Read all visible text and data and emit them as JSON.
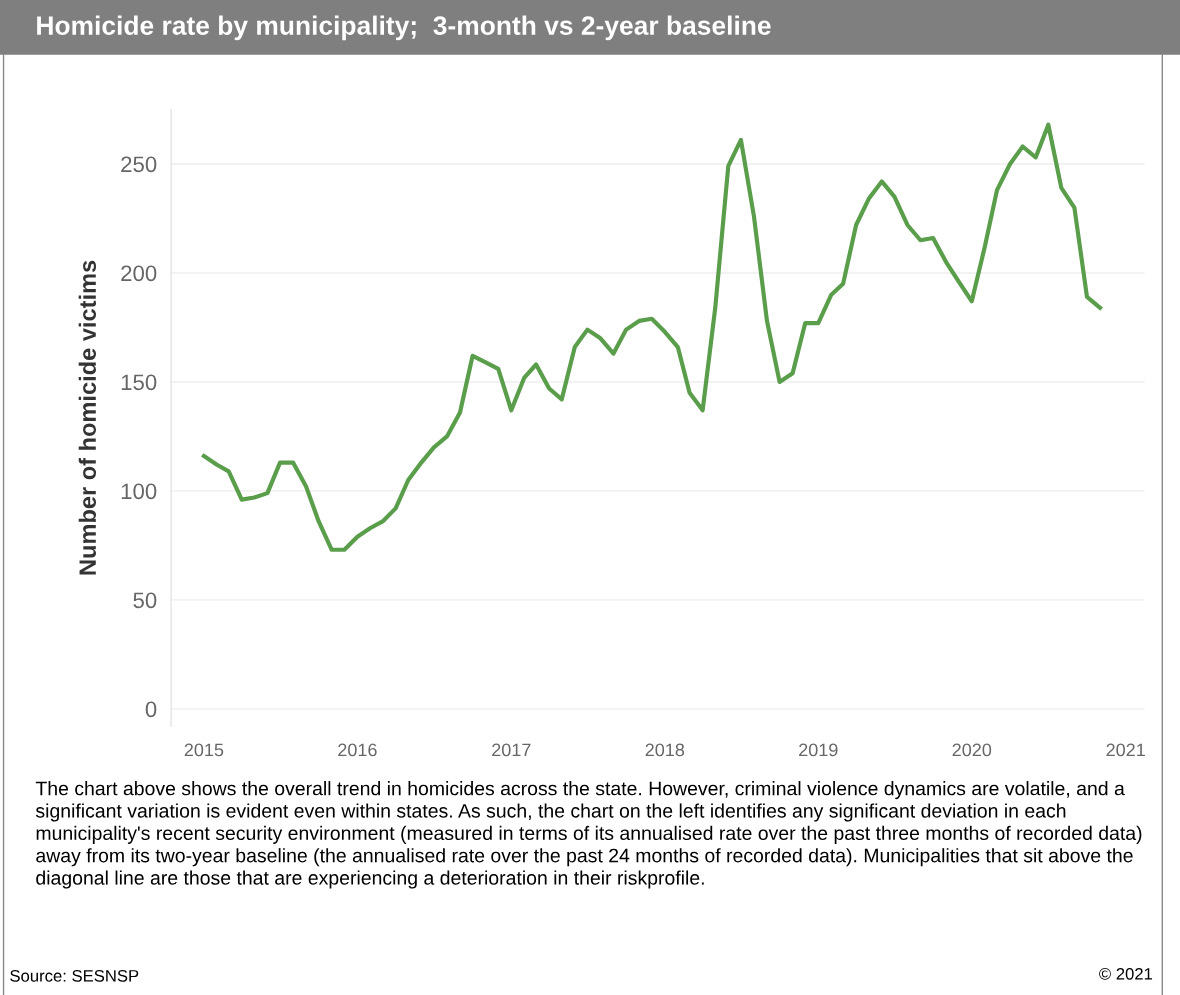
{
  "chart_data": {
    "type": "line",
    "title": "Homicide rate by municipality;  3-month vs 2-year baseline",
    "ylabel": "Number of homicide victims",
    "x": [
      "2015-01",
      "2015-02",
      "2015-03",
      "2015-04",
      "2015-05",
      "2015-06",
      "2015-07",
      "2015-08",
      "2015-09",
      "2015-10",
      "2015-11",
      "2015-12",
      "2016-01",
      "2016-02",
      "2016-03",
      "2016-04",
      "2016-05",
      "2016-06",
      "2016-07",
      "2016-08",
      "2016-09",
      "2016-10",
      "2016-11",
      "2016-12",
      "2017-01",
      "2017-02",
      "2017-03",
      "2017-04",
      "2017-05",
      "2017-06",
      "2017-07",
      "2017-08",
      "2017-09",
      "2017-10",
      "2017-11",
      "2017-12",
      "2018-01",
      "2018-02",
      "2018-03",
      "2018-04",
      "2018-05",
      "2018-06",
      "2018-07",
      "2018-08",
      "2018-09",
      "2018-10",
      "2018-11",
      "2018-12",
      "2019-01",
      "2019-02",
      "2019-03",
      "2019-04",
      "2019-05",
      "2019-06",
      "2019-07",
      "2019-08",
      "2019-09",
      "2019-10",
      "2019-11",
      "2019-12",
      "2020-01",
      "2020-02",
      "2020-03",
      "2020-04",
      "2020-05",
      "2020-06",
      "2020-07",
      "2020-08",
      "2020-09",
      "2020-10",
      "2020-11"
    ],
    "series": [
      {
        "color": "#5a9e4b",
        "values": [
          116,
          112,
          109,
          96,
          97,
          99,
          113,
          113,
          102,
          86,
          73,
          73,
          79,
          83,
          86,
          92,
          105,
          113,
          120,
          125,
          136,
          162,
          159,
          156,
          137,
          152,
          158,
          147,
          142,
          166,
          174,
          170,
          163,
          174,
          178,
          179,
          173,
          166,
          145,
          137,
          184,
          249,
          261,
          226,
          178,
          150,
          154,
          177,
          177,
          190,
          195,
          222,
          234,
          242,
          235,
          222,
          215,
          216,
          205,
          196,
          187,
          212,
          238,
          250,
          258,
          253,
          268,
          239,
          230,
          189,
          184
        ]
      }
    ],
    "xlim": [
      "2014-10-15",
      "2021-02-15"
    ],
    "xticks": [
      {
        "value": "2015-01-01",
        "label": "2015"
      },
      {
        "value": "2016-01-01",
        "label": "2016"
      },
      {
        "value": "2017-01-01",
        "label": "2017"
      },
      {
        "value": "2018-01-01",
        "label": "2018"
      },
      {
        "value": "2019-01-01",
        "label": "2019"
      },
      {
        "value": "2020-01-01",
        "label": "2020"
      },
      {
        "value": "2021-01-01",
        "label": "2021"
      }
    ],
    "ylim": [
      -8,
      275
    ],
    "yticks": [
      0,
      50,
      100,
      150,
      200,
      250
    ],
    "grid": "y",
    "marker": "none",
    "line_style": "solid",
    "annotations": [
      "The chart above shows the overall trend in homicides across the state. However, criminal violence dynamics are volatile, and a significant variation is evident even within states. As such, the chart on the left identifies any significant deviation in each municipality's recent security environment (measured in terms of its annualised rate over the past three months of recorded data) away from its two-year baseline (the annualised rate over the past 24 months of recorded data). Municipalities that sit above the diagonal line are those that are experiencing a deterioration in their riskprofile.",
      "Source: SESNSP",
      "© 2021"
    ]
  }
}
